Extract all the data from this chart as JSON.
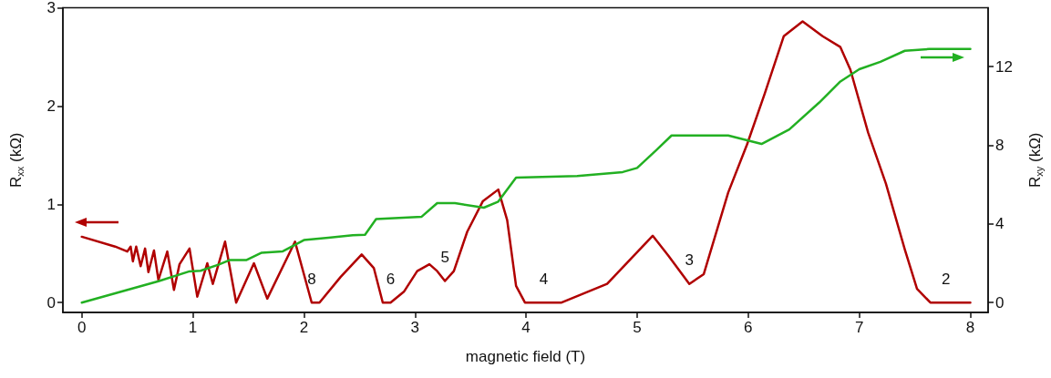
{
  "chart_data": {
    "type": "line",
    "xlabel": "magnetic field (T)",
    "ylabel": "R$_{xx}$ (kΩ)",
    "y2label": "R$_{xy}$ (kΩ)",
    "xlim": [
      -0.17,
      8.16
    ],
    "xticks": [
      0,
      1,
      2,
      3,
      4,
      5,
      6,
      7,
      8
    ],
    "ylim": [
      -0.1,
      3
    ],
    "yticks": [
      0,
      1,
      2,
      3
    ],
    "y2lim": [
      -0.5,
      15
    ],
    "y2ticks": [
      0,
      4,
      8,
      12
    ],
    "grid": false,
    "marker": "none",
    "line_style": "solid",
    "series": [
      {
        "color": "#b00000",
        "x": [
          0,
          0.3,
          0.41,
          0.44,
          0.46,
          0.49,
          0.53,
          0.57,
          0.6,
          0.65,
          0.69,
          0.77,
          0.83,
          0.88,
          0.97,
          1.04,
          1.13,
          1.18,
          1.29,
          1.39,
          1.55,
          1.67,
          1.92,
          2.07,
          2.14,
          2.33,
          2.52,
          2.63,
          2.71,
          2.78,
          2.9,
          3.02,
          3.13,
          3.2,
          3.27,
          3.35,
          3.47,
          3.61,
          3.75,
          3.83,
          3.91,
          3.99,
          4.16,
          4.32,
          4.73,
          5.14,
          5.28,
          5.47,
          5.6,
          5.82,
          5.99,
          6.15,
          6.32,
          6.49,
          6.67,
          6.83,
          6.92,
          7.08,
          7.24,
          7.41,
          7.52,
          7.64,
          7.78,
          8.0
        ],
        "values": [
          0.67,
          0.57,
          0.52,
          0.57,
          0.42,
          0.57,
          0.37,
          0.55,
          0.31,
          0.53,
          0.23,
          0.52,
          0.13,
          0.39,
          0.55,
          0.06,
          0.4,
          0.19,
          0.62,
          0.0,
          0.4,
          0.04,
          0.62,
          0.0,
          0.0,
          0.26,
          0.49,
          0.35,
          0.0,
          0.0,
          0.11,
          0.32,
          0.39,
          0.32,
          0.22,
          0.32,
          0.72,
          1.03,
          1.15,
          0.84,
          0.17,
          0.0,
          0.0,
          0.0,
          0.19,
          0.68,
          0.48,
          0.19,
          0.29,
          1.12,
          1.61,
          2.13,
          2.71,
          2.86,
          2.71,
          2.6,
          2.37,
          1.73,
          1.21,
          0.54,
          0.14,
          0.0,
          0.0,
          0.0
        ]
      },
      {
        "color": "#22b022",
        "axis": "y2",
        "x": [
          0,
          0.69,
          0.97,
          1.07,
          1.23,
          1.33,
          1.48,
          1.62,
          1.81,
          2.0,
          2.22,
          2.44,
          2.55,
          2.65,
          3.06,
          3.2,
          3.36,
          3.62,
          3.75,
          3.91,
          4.46,
          4.87,
          5.0,
          5.17,
          5.31,
          5.82,
          6.12,
          6.37,
          6.64,
          6.83,
          7.0,
          7.19,
          7.41,
          7.63,
          8.0
        ],
        "values": [
          0,
          1.09,
          1.59,
          1.62,
          1.93,
          2.16,
          2.16,
          2.54,
          2.61,
          3.18,
          3.3,
          3.43,
          3.45,
          4.25,
          4.37,
          5.06,
          5.06,
          4.83,
          5.14,
          6.36,
          6.44,
          6.64,
          6.85,
          7.74,
          8.5,
          8.5,
          8.07,
          8.81,
          10.18,
          11.25,
          11.87,
          12.25,
          12.81,
          12.9,
          12.9
        ]
      }
    ],
    "annotations": [
      {
        "text": "8",
        "x": 2.07,
        "y": 0.0
      },
      {
        "text": "6",
        "x": 2.78,
        "y": 0.0
      },
      {
        "text": "5",
        "x": 3.27,
        "y": 0.22
      },
      {
        "text": "4",
        "x": 4.16,
        "y": 0.0
      },
      {
        "text": "3",
        "x": 5.47,
        "y": 0.19
      },
      {
        "text": "2",
        "x": 7.78,
        "y": 0.0
      }
    ]
  }
}
